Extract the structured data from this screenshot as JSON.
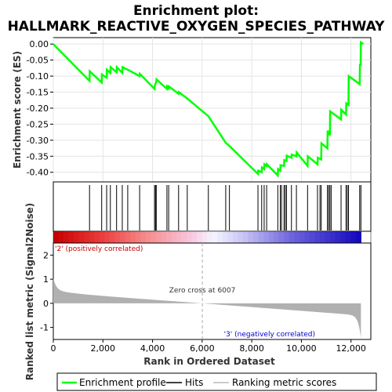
{
  "chart_data": {
    "type": "line",
    "title_line1": "Enrichment plot:",
    "title_line2": "HALLMARK_REACTIVE_OXYGEN_SPECIES_PATHWAY",
    "es_ylabel": "Enrichment score (ES)",
    "metric_ylabel": "Ranked list metric (Signal2Noise)",
    "xlabel": "Rank in Ordered Dataset",
    "xlim": [
      0,
      12800
    ],
    "es_ylim": [
      -0.43,
      0.02
    ],
    "metric_ylim": [
      -1.5,
      2.5
    ],
    "x_ticks": [
      0,
      2000,
      4000,
      6000,
      8000,
      10000,
      12000
    ],
    "x_tick_labels": [
      "0",
      "2,000",
      "4,000",
      "6,000",
      "8,000",
      "10,000",
      "12,000"
    ],
    "es_ticks": [
      0.0,
      -0.05,
      -0.1,
      -0.15,
      -0.2,
      -0.25,
      -0.3,
      -0.35,
      -0.4
    ],
    "es_tick_labels": [
      "0.00",
      "-0.05",
      "-0.10",
      "-0.15",
      "-0.20",
      "-0.25",
      "-0.30",
      "-0.35",
      "-0.40"
    ],
    "metric_ticks": [
      2,
      1,
      0,
      -1
    ],
    "metric_tick_labels": [
      "2",
      "1",
      "0",
      "-1"
    ],
    "total_rank": 12400,
    "zero_cross_rank": 6007,
    "zero_cross_label": "Zero cross at 6007",
    "pos_label": "'2' (positively correlated)",
    "neg_label": "'3' (negatively correlated)",
    "pos_color": "#cc0000",
    "neg_color": "#0000cc",
    "es_line_color": "#00ff00",
    "hits": [
      1460,
      1950,
      2150,
      2300,
      2550,
      2780,
      3000,
      3480,
      4080,
      4120,
      4150,
      4580,
      4650,
      5050,
      5400,
      6250,
      6950,
      7100,
      8250,
      8400,
      8500,
      8600,
      9050,
      9150,
      9200,
      9300,
      9350,
      9400,
      9600,
      9800,
      10250,
      10650,
      10750,
      10800,
      11050,
      11100,
      11150,
      11200,
      11600,
      11800,
      11850,
      11900,
      12350,
      12400
    ],
    "es_points": [
      [
        0,
        0.0
      ],
      [
        1460,
        -0.115
      ],
      [
        1470,
        -0.085
      ],
      [
        1950,
        -0.12
      ],
      [
        1960,
        -0.095
      ],
      [
        2150,
        -0.105
      ],
      [
        2160,
        -0.08
      ],
      [
        2300,
        -0.09
      ],
      [
        2310,
        -0.072
      ],
      [
        2550,
        -0.088
      ],
      [
        2560,
        -0.072
      ],
      [
        2780,
        -0.09
      ],
      [
        2790,
        -0.072
      ],
      [
        3000,
        -0.08
      ],
      [
        3480,
        -0.1
      ],
      [
        3490,
        -0.093
      ],
      [
        4080,
        -0.14
      ],
      [
        4090,
        -0.13
      ],
      [
        4150,
        -0.118
      ],
      [
        4160,
        -0.11
      ],
      [
        4580,
        -0.14
      ],
      [
        4590,
        -0.132
      ],
      [
        4650,
        -0.138
      ],
      [
        4660,
        -0.132
      ],
      [
        5050,
        -0.155
      ],
      [
        5060,
        -0.15
      ],
      [
        5400,
        -0.17
      ],
      [
        6250,
        -0.225
      ],
      [
        6950,
        -0.308
      ],
      [
        7100,
        -0.318
      ],
      [
        8250,
        -0.405
      ],
      [
        8260,
        -0.395
      ],
      [
        8400,
        -0.4
      ],
      [
        8410,
        -0.385
      ],
      [
        8500,
        -0.39
      ],
      [
        8510,
        -0.375
      ],
      [
        8600,
        -0.38
      ],
      [
        8610,
        -0.375
      ],
      [
        9050,
        -0.41
      ],
      [
        9060,
        -0.39
      ],
      [
        9150,
        -0.395
      ],
      [
        9160,
        -0.378
      ],
      [
        9300,
        -0.38
      ],
      [
        9310,
        -0.362
      ],
      [
        9400,
        -0.365
      ],
      [
        9410,
        -0.348
      ],
      [
        9600,
        -0.355
      ],
      [
        9610,
        -0.345
      ],
      [
        9800,
        -0.35
      ],
      [
        9810,
        -0.338
      ],
      [
        10250,
        -0.38
      ],
      [
        10260,
        -0.35
      ],
      [
        10650,
        -0.375
      ],
      [
        10660,
        -0.355
      ],
      [
        10800,
        -0.36
      ],
      [
        10810,
        -0.31
      ],
      [
        11050,
        -0.325
      ],
      [
        11060,
        -0.27
      ],
      [
        11150,
        -0.285
      ],
      [
        11160,
        -0.21
      ],
      [
        11600,
        -0.235
      ],
      [
        11610,
        -0.205
      ],
      [
        11800,
        -0.22
      ],
      [
        11810,
        -0.185
      ],
      [
        11900,
        -0.19
      ],
      [
        11910,
        -0.1
      ],
      [
        12350,
        -0.125
      ],
      [
        12360,
        -0.065
      ],
      [
        12390,
        -0.065
      ],
      [
        12400,
        0.005
      ],
      [
        12500,
        0.0
      ]
    ]
  },
  "legend": {
    "items": [
      {
        "label": "Enrichment profile",
        "color": "#00ff00"
      },
      {
        "label": "Hits",
        "color": "#000000"
      },
      {
        "label": "Ranking metric scores",
        "color": "#bbbbbb"
      }
    ]
  }
}
